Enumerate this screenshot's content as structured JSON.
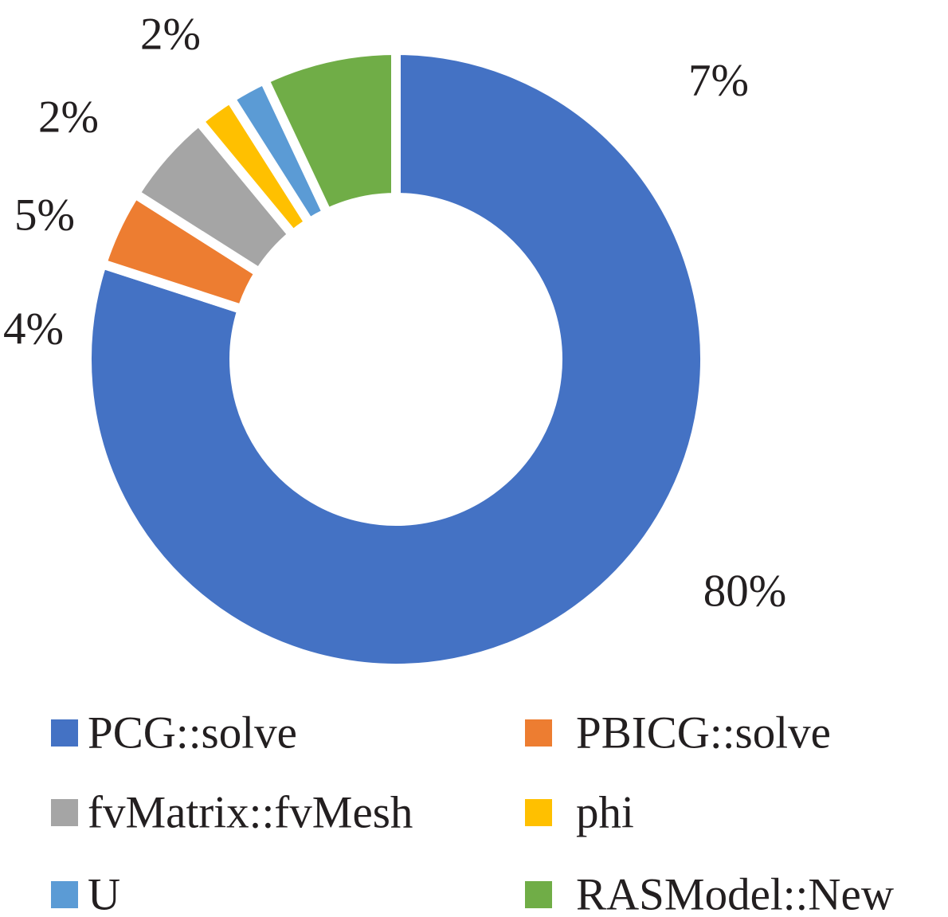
{
  "chart_data": {
    "type": "pie",
    "variant": "donut",
    "title": "",
    "start_angle": "top, clockwise",
    "legend_position": "bottom",
    "series": [
      {
        "name": "PCG::solve",
        "value": 80,
        "label": "80%",
        "color": "#4472C4"
      },
      {
        "name": "PBICG::solve",
        "value": 4,
        "label": "4%",
        "color": "#ED7D31"
      },
      {
        "name": "fvMatrix::fvMesh",
        "value": 5,
        "label": "5%",
        "color": "#A5A5A5"
      },
      {
        "name": "phi",
        "value": 2,
        "label": "2%",
        "color": "#FFC000"
      },
      {
        "name": "U",
        "value": 2,
        "label": "2%",
        "color": "#5B9BD5"
      },
      {
        "name": "RASModel::New",
        "value": 7,
        "label": "7%",
        "color": "#70AD47"
      }
    ]
  }
}
